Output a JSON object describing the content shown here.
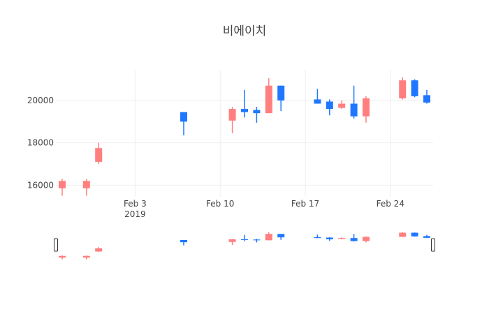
{
  "chart_data": {
    "type": "candlestick",
    "title": "비에이치",
    "x_ticks": [
      {
        "date": "2019-02-03",
        "label": "Feb 3",
        "sublabel": "2019"
      },
      {
        "date": "2019-02-10",
        "label": "Feb 10"
      },
      {
        "date": "2019-02-17",
        "label": "Feb 17"
      },
      {
        "date": "2019-02-24",
        "label": "Feb 24"
      }
    ],
    "y_ticks": [
      {
        "value": 16000,
        "label": "16000"
      },
      {
        "value": 18000,
        "label": "18000"
      },
      {
        "value": 20000,
        "label": "20000"
      }
    ],
    "xlim": [
      "2019-01-28",
      "2019-02-27"
    ],
    "ylim": [
      15450,
      21450
    ],
    "increasing_color": "#ff7f7f",
    "decreasing_color": "#1f77ff",
    "grid": true,
    "range_slider": true,
    "candles": [
      {
        "date": "2019-01-28",
        "open": 15850,
        "high": 16300,
        "low": 15500,
        "close": 16200
      },
      {
        "date": "2019-01-30",
        "open": 15850,
        "high": 16300,
        "low": 15500,
        "close": 16200
      },
      {
        "date": "2019-01-31",
        "open": 17100,
        "high": 18000,
        "low": 17000,
        "close": 17750
      },
      {
        "date": "2019-02-07",
        "open": 19450,
        "high": 19450,
        "low": 18350,
        "close": 19000
      },
      {
        "date": "2019-02-11",
        "open": 19050,
        "high": 19700,
        "low": 18450,
        "close": 19600
      },
      {
        "date": "2019-02-12",
        "open": 19600,
        "high": 20500,
        "low": 19200,
        "close": 19450
      },
      {
        "date": "2019-02-13",
        "open": 19550,
        "high": 19700,
        "low": 18950,
        "close": 19400
      },
      {
        "date": "2019-02-14",
        "open": 19400,
        "high": 21050,
        "low": 19400,
        "close": 20700
      },
      {
        "date": "2019-02-15",
        "open": 20700,
        "high": 20700,
        "low": 19500,
        "close": 20000
      },
      {
        "date": "2019-02-18",
        "open": 20050,
        "high": 20550,
        "low": 19850,
        "close": 19850
      },
      {
        "date": "2019-02-19",
        "open": 19950,
        "high": 20050,
        "low": 19300,
        "close": 19600
      },
      {
        "date": "2019-02-20",
        "open": 19650,
        "high": 20000,
        "low": 19600,
        "close": 19850
      },
      {
        "date": "2019-02-21",
        "open": 19850,
        "high": 20700,
        "low": 19150,
        "close": 19250
      },
      {
        "date": "2019-02-22",
        "open": 19250,
        "high": 20200,
        "low": 18950,
        "close": 20100
      },
      {
        "date": "2019-02-25",
        "open": 20100,
        "high": 21100,
        "low": 20050,
        "close": 20950
      },
      {
        "date": "2019-02-26",
        "open": 20950,
        "high": 21000,
        "low": 20150,
        "close": 20200
      },
      {
        "date": "2019-02-27",
        "open": 20250,
        "high": 20500,
        "low": 19850,
        "close": 19900
      }
    ]
  }
}
